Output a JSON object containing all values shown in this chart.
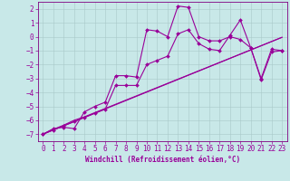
{
  "title": "",
  "xlabel": "Windchill (Refroidissement éolien,°C)",
  "bg_color": "#c8e8e8",
  "grid_color": "#a8c8c8",
  "line_color": "#990099",
  "spine_color": "#800080",
  "xlim": [
    -0.5,
    23.5
  ],
  "ylim": [
    -7.5,
    2.5
  ],
  "yticks": [
    -7,
    -6,
    -5,
    -4,
    -3,
    -2,
    -1,
    0,
    1,
    2
  ],
  "xticks": [
    0,
    1,
    2,
    3,
    4,
    5,
    6,
    7,
    8,
    9,
    10,
    11,
    12,
    13,
    14,
    15,
    16,
    17,
    18,
    19,
    20,
    21,
    22,
    23
  ],
  "line1_x": [
    0,
    1,
    2,
    3,
    4,
    5,
    6,
    7,
    8,
    9,
    10,
    11,
    12,
    13,
    14,
    15,
    16,
    17,
    18,
    19,
    20,
    21,
    22,
    23
  ],
  "line1_y": [
    -7.0,
    -6.6,
    -6.5,
    -6.6,
    -5.4,
    -5.0,
    -4.7,
    -2.8,
    -2.8,
    -2.9,
    0.5,
    0.4,
    0.0,
    2.2,
    2.1,
    0.0,
    -0.3,
    -0.3,
    0.0,
    -0.2,
    -0.8,
    -3.0,
    -0.9,
    -1.0
  ],
  "line2_x": [
    0,
    1,
    2,
    3,
    4,
    5,
    6,
    7,
    8,
    9,
    10,
    11,
    12,
    13,
    14,
    15,
    16,
    17,
    18,
    19,
    20,
    21,
    22,
    23
  ],
  "line2_y": [
    -7.0,
    -6.65,
    -6.35,
    -6.0,
    -5.75,
    -5.45,
    -5.15,
    -4.85,
    -4.55,
    -4.25,
    -3.95,
    -3.65,
    -3.35,
    -3.05,
    -2.75,
    -2.45,
    -2.15,
    -1.85,
    -1.55,
    -1.25,
    -0.95,
    -0.65,
    -0.35,
    -0.05
  ],
  "line3_x": [
    0,
    1,
    2,
    3,
    4,
    5,
    6,
    7,
    8,
    9,
    10,
    11,
    12,
    13,
    14,
    15,
    16,
    17,
    18,
    19,
    20,
    21,
    22,
    23
  ],
  "line3_y": [
    -7.0,
    -6.7,
    -6.4,
    -6.1,
    -5.8,
    -5.5,
    -5.2,
    -3.5,
    -3.5,
    -3.5,
    -2.0,
    -1.7,
    -1.4,
    0.2,
    0.5,
    -0.5,
    -0.9,
    -1.0,
    0.1,
    1.2,
    -0.8,
    -3.1,
    -1.1,
    -1.0
  ],
  "line4_x": [
    0,
    23
  ],
  "line4_y": [
    -7.0,
    -0.05
  ],
  "marker": "D",
  "markersize": 2.0,
  "linewidth": 0.8,
  "tick_fontsize": 5.5,
  "xlabel_fontsize": 5.5
}
